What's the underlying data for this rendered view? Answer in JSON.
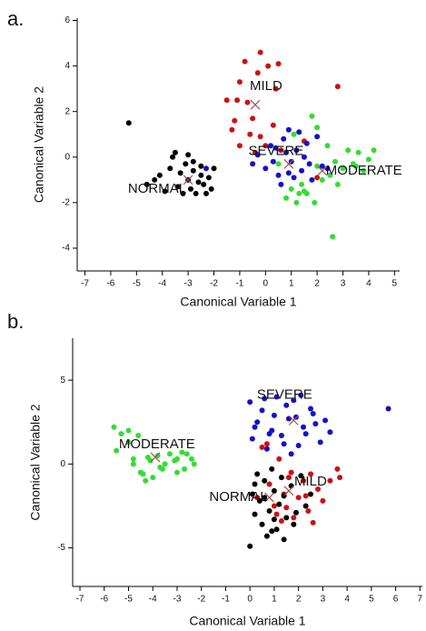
{
  "chart_data": [
    {
      "type": "scatter",
      "panel_label": "a.",
      "xlabel": "Canonical Variable 1",
      "ylabel": "Canonical Variable 2",
      "xlim": [
        -7.3,
        5.2
      ],
      "ylim": [
        -5,
        6.1
      ],
      "xticks": [
        -7,
        -6,
        -5,
        -4,
        -3,
        -2,
        -1,
        0,
        1,
        2,
        3,
        4,
        5
      ],
      "yticks": [
        -4,
        -2,
        0,
        2,
        4,
        6
      ],
      "centroid_color": "#a05050",
      "series": [
        {
          "name": "NORMAL",
          "color": "#000000",
          "x": [
            -5.3,
            -4.6,
            -4.3,
            -4.1,
            -3.9,
            -3.7,
            -3.5,
            -3.4,
            -3.3,
            -3.2,
            -3.1,
            -3.0,
            -2.9,
            -2.8,
            -2.7,
            -2.6,
            -2.5,
            -2.4,
            -2.3,
            -2.2,
            -2.1,
            -3.6,
            -3.0,
            -2.8,
            -2.5,
            -2.0
          ],
          "y": [
            1.5,
            -1.2,
            -1.0,
            -0.8,
            -1.5,
            -0.5,
            0.2,
            -1.3,
            -0.7,
            -1.6,
            -0.3,
            -1.0,
            -1.4,
            -0.6,
            -1.6,
            -1.1,
            -0.4,
            -1.2,
            -1.6,
            -0.9,
            -1.4,
            0.0,
            0.1,
            -0.2,
            -0.8,
            -0.5
          ],
          "centroid": [
            -3.0,
            -1.0
          ]
        },
        {
          "name": "MILD",
          "color": "#cc1111",
          "x": [
            -0.2,
            0.1,
            0.5,
            -0.8,
            -0.3,
            -1.0,
            -1.1,
            -1.3,
            -1.5,
            -0.5,
            0.3,
            -0.7,
            -1.2,
            -0.2,
            0.0,
            0.6,
            2.8,
            1.5,
            -0.6,
            -1.0,
            0.4,
            -0.4,
            2.0
          ],
          "y": [
            4.6,
            4.0,
            4.1,
            4.2,
            3.7,
            3.3,
            2.5,
            1.2,
            2.5,
            1.7,
            1.4,
            2.4,
            1.6,
            0.9,
            0.5,
            0.3,
            3.1,
            0.7,
            1.0,
            0.5,
            3.0,
            0.2,
            -0.9
          ],
          "centroid": [
            -0.4,
            2.3
          ]
        },
        {
          "name": "SEVERE",
          "color": "#1111cc",
          "x": [
            -0.5,
            -0.3,
            0.0,
            0.2,
            0.5,
            0.7,
            0.9,
            1.0,
            1.2,
            1.4,
            1.6,
            1.8,
            2.0,
            2.2,
            0.3,
            0.6,
            0.8,
            1.1,
            1.5,
            1.7,
            2.4,
            -2.3,
            0.4,
            1.3,
            0.9
          ],
          "y": [
            -0.3,
            0.1,
            -0.5,
            0.5,
            -0.8,
            0.8,
            1.2,
            -0.2,
            0.3,
            -0.6,
            0.6,
            -1.0,
            0.9,
            -0.4,
            -0.2,
            -1.2,
            0.2,
            -0.9,
            0.0,
            -0.3,
            -0.5,
            -0.5,
            0.4,
            1.1,
            -0.7
          ],
          "centroid": [
            0.9,
            -0.3
          ]
        },
        {
          "name": "MODERATE",
          "color": "#33dd33",
          "x": [
            0.8,
            1.0,
            1.2,
            1.4,
            1.6,
            1.8,
            2.0,
            2.2,
            2.4,
            2.6,
            2.8,
            3.0,
            3.2,
            3.4,
            3.6,
            3.8,
            4.0,
            4.2,
            1.1,
            1.3,
            2.5,
            2.0,
            1.5,
            2.7,
            3.5,
            1.9,
            0.5
          ],
          "y": [
            -1.8,
            -1.4,
            -2.0,
            -1.2,
            -1.6,
            1.8,
            -0.4,
            -1.0,
            0.5,
            -3.5,
            -1.2,
            -0.5,
            0.3,
            -0.3,
            0.2,
            -0.6,
            -0.1,
            0.3,
            1.0,
            -1.6,
            -0.8,
            1.3,
            -1.5,
            -0.2,
            -0.4,
            -2.0,
            -0.3
          ],
          "centroid": [
            2.2,
            -0.6
          ]
        }
      ]
    },
    {
      "type": "scatter",
      "panel_label": "b.",
      "xlabel": "Canonical Variable 1",
      "ylabel": "Canonical Variable 2",
      "xlim": [
        -7.3,
        7.1
      ],
      "ylim": [
        -7.3,
        7.5
      ],
      "xticks": [
        -7,
        -6,
        -5,
        -4,
        -3,
        -2,
        -1,
        0,
        1,
        2,
        3,
        4,
        5,
        6,
        7
      ],
      "yticks": [
        -5,
        0,
        5
      ],
      "centroid_color": "#a05050",
      "series": [
        {
          "name": "MODERATE",
          "color": "#33dd33",
          "x": [
            -5.6,
            -5.5,
            -5.3,
            -5.0,
            -4.8,
            -4.6,
            -4.5,
            -4.3,
            -4.1,
            -4.0,
            -3.8,
            -3.6,
            -3.5,
            -3.3,
            -3.1,
            -3.0,
            -2.8,
            -2.6,
            -2.4,
            -2.3,
            -5.0,
            -4.2,
            -3.7,
            -3.0,
            -2.7,
            -4.4,
            -4.8
          ],
          "y": [
            2.2,
            0.8,
            1.8,
            2.0,
            0.0,
            1.7,
            -0.5,
            -1.0,
            0.2,
            -0.8,
            0.5,
            -0.3,
            0.0,
            0.6,
            0.2,
            -0.5,
            0.7,
            0.6,
            0.3,
            0.0,
            1.3,
            0.4,
            -0.2,
            0.3,
            -0.3,
            -0.6,
            0.3
          ],
          "centroid": [
            -3.9,
            0.4
          ]
        },
        {
          "name": "SEVERE",
          "color": "#1111cc",
          "x": [
            0.0,
            0.1,
            0.3,
            0.5,
            0.7,
            0.9,
            1.1,
            1.3,
            1.5,
            1.7,
            1.9,
            2.1,
            2.3,
            2.5,
            2.7,
            2.9,
            3.1,
            3.3,
            0.2,
            0.6,
            1.0,
            1.4,
            1.8,
            2.2,
            2.6,
            5.7,
            0.8,
            1.6,
            2.0
          ],
          "y": [
            3.7,
            1.5,
            2.5,
            3.2,
            0.9,
            2.0,
            4.0,
            1.7,
            3.5,
            0.6,
            2.8,
            4.1,
            1.8,
            3.3,
            2.4,
            1.3,
            2.6,
            1.9,
            2.2,
            3.9,
            2.9,
            1.2,
            3.8,
            2.2,
            3.0,
            3.3,
            1.8,
            2.7,
            1.1
          ],
          "centroid": [
            1.8,
            2.6
          ]
        },
        {
          "name": "MILD",
          "color": "#cc1111",
          "x": [
            0.5,
            0.8,
            1.0,
            1.2,
            1.4,
            1.6,
            1.8,
            2.0,
            2.2,
            2.4,
            2.6,
            2.8,
            3.0,
            3.3,
            3.6,
            3.7,
            0.3,
            1.1,
            1.7,
            2.3,
            0.7,
            1.5,
            2.5,
            1.3
          ],
          "y": [
            1.0,
            -1.2,
            -2.5,
            0.3,
            -1.8,
            -0.8,
            -3.2,
            -2.0,
            -1.0,
            -2.8,
            -3.5,
            -1.5,
            -2.2,
            -1.0,
            -0.3,
            -0.8,
            -2.0,
            -3.0,
            -0.5,
            -1.9,
            1.2,
            -2.6,
            -0.6,
            -3.4
          ],
          "centroid": [
            1.6,
            -1.6
          ]
        },
        {
          "name": "NORMAL",
          "color": "#000000",
          "x": [
            0.0,
            0.1,
            0.2,
            0.3,
            0.4,
            0.5,
            0.6,
            0.7,
            0.8,
            0.9,
            1.0,
            1.1,
            1.2,
            1.3,
            1.4,
            1.5,
            1.7,
            1.9,
            2.1,
            2.3,
            2.5,
            0.2,
            0.6,
            1.0,
            1.4,
            0.9,
            1.8
          ],
          "y": [
            -4.9,
            -1.8,
            -3.0,
            -0.6,
            -2.2,
            -3.6,
            -1.0,
            -4.3,
            -2.8,
            -0.3,
            -1.6,
            -3.9,
            -2.4,
            -0.8,
            -4.5,
            -3.2,
            -1.3,
            -2.9,
            -0.7,
            -2.5,
            -1.8,
            -1.2,
            -2.0,
            -3.3,
            -1.9,
            -4.0,
            -3.6
          ],
          "centroid": [
            0.8,
            -2.0
          ]
        }
      ]
    }
  ]
}
